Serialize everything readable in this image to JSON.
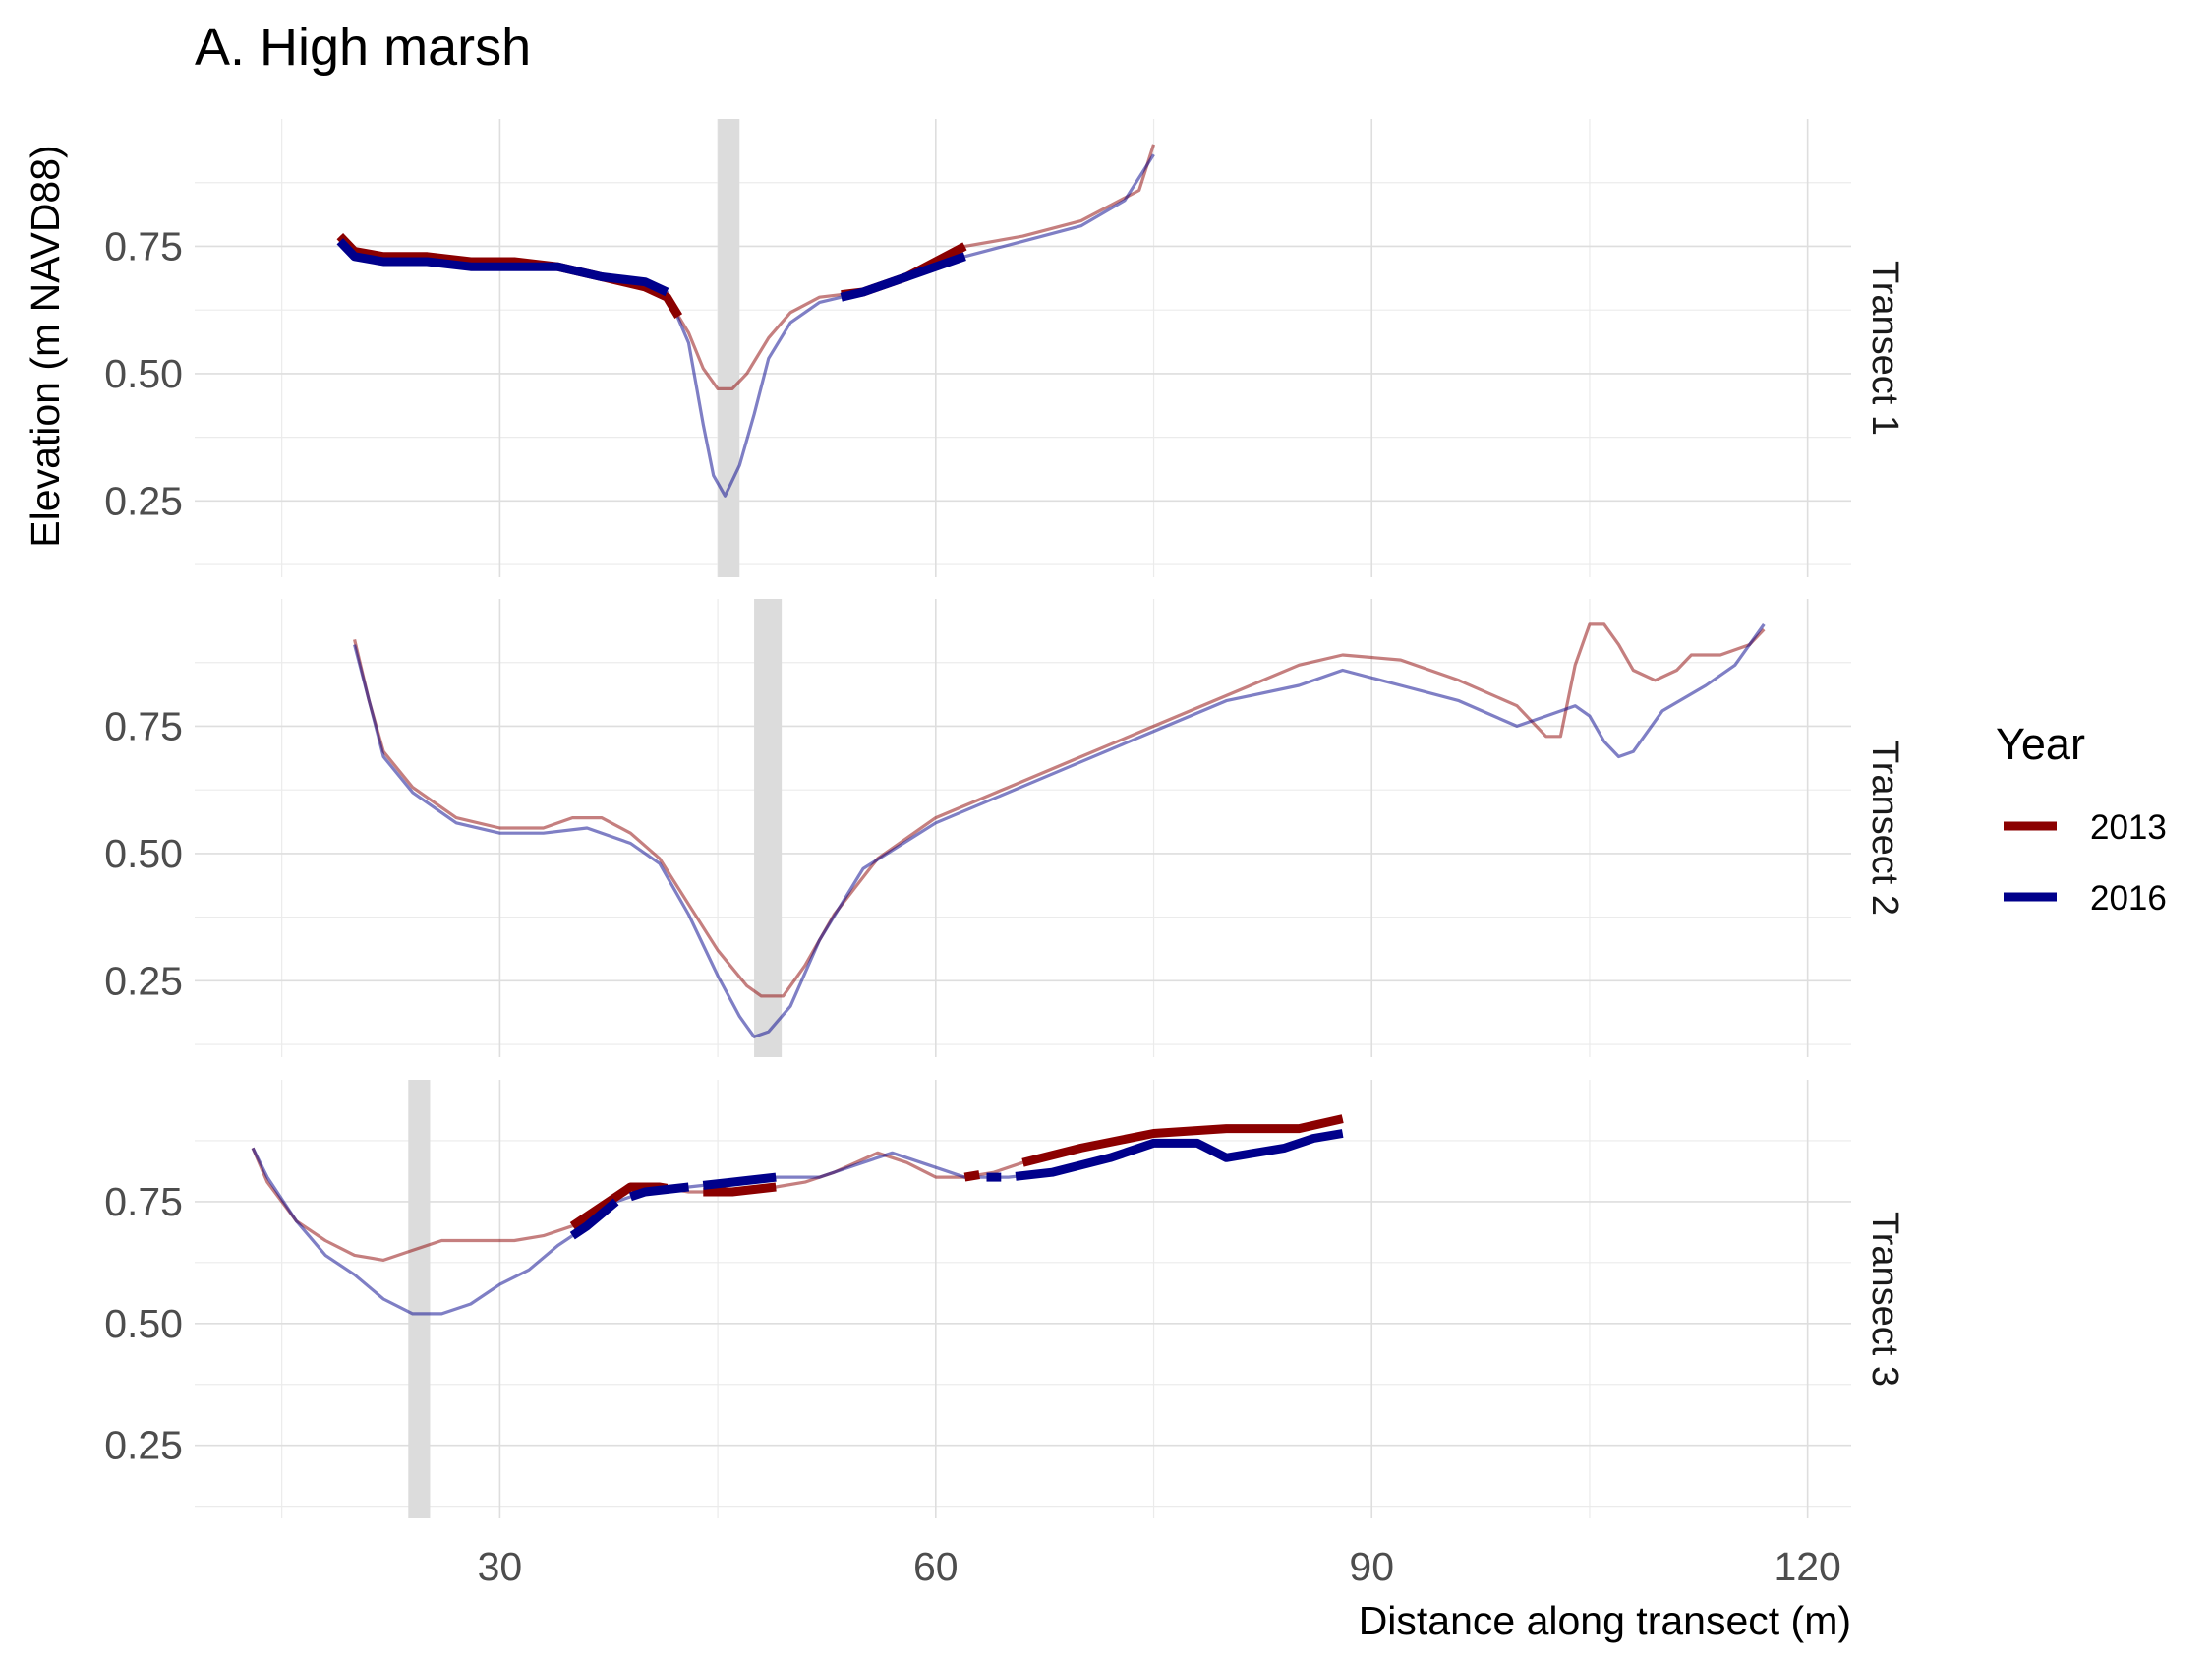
{
  "chart_data": {
    "type": "line",
    "title": "A. High marsh",
    "xlabel": "Distance along transect (m)",
    "ylabel": "Elevation (m NAVD88)",
    "xlim": [
      9,
      123
    ],
    "ylim": [
      0.1,
      1.0
    ],
    "x_ticks": [
      30,
      60,
      90,
      120
    ],
    "x_tick_labels": [
      "30",
      "60",
      "90",
      "120"
    ],
    "y_ticks": [
      0.25,
      0.5,
      0.75
    ],
    "y_tick_labels": [
      "0.25",
      "0.50",
      "0.75"
    ],
    "grid": true,
    "legend": {
      "title": "Year",
      "position": "right",
      "entries": [
        {
          "label": "2013",
          "color": "#8b0000"
        },
        {
          "label": "2016",
          "color": "#00008b"
        }
      ]
    },
    "colors": {
      "2013": "#8b0000",
      "2016": "#00008b",
      "band": "#dcdcdc"
    },
    "panels": [
      {
        "strip": "Transect 1",
        "band": [
          45,
          46.5
        ],
        "series": [
          {
            "name": "2013",
            "points": [
              [
                19,
                0.77
              ],
              [
                20,
                0.74
              ],
              [
                22,
                0.73
              ],
              [
                25,
                0.73
              ],
              [
                28,
                0.72
              ],
              [
                31,
                0.72
              ],
              [
                34,
                0.71
              ],
              [
                37,
                0.69
              ],
              [
                40,
                0.67
              ],
              [
                41.5,
                0.65
              ],
              [
                43,
                0.58
              ],
              [
                44,
                0.51
              ],
              [
                45,
                0.47
              ],
              [
                46,
                0.47
              ],
              [
                47,
                0.5
              ],
              [
                48.5,
                0.57
              ],
              [
                50,
                0.62
              ],
              [
                52,
                0.65
              ],
              [
                55,
                0.66
              ],
              [
                58,
                0.69
              ],
              [
                62,
                0.75
              ],
              [
                66,
                0.77
              ],
              [
                70,
                0.8
              ],
              [
                74,
                0.86
              ],
              [
                75,
                0.95
              ]
            ],
            "bold": [
              [
                19,
                42.3
              ],
              [
                53.5,
                62
              ]
            ]
          },
          {
            "name": "2016",
            "points": [
              [
                19,
                0.76
              ],
              [
                20,
                0.73
              ],
              [
                22,
                0.72
              ],
              [
                25,
                0.72
              ],
              [
                28,
                0.71
              ],
              [
                31,
                0.71
              ],
              [
                34,
                0.71
              ],
              [
                37,
                0.69
              ],
              [
                40,
                0.68
              ],
              [
                41.5,
                0.66
              ],
              [
                43,
                0.56
              ],
              [
                44,
                0.4
              ],
              [
                44.7,
                0.3
              ],
              [
                45.5,
                0.26
              ],
              [
                46.5,
                0.32
              ],
              [
                47.5,
                0.42
              ],
              [
                48.5,
                0.53
              ],
              [
                50,
                0.6
              ],
              [
                52,
                0.64
              ],
              [
                55,
                0.66
              ],
              [
                58,
                0.69
              ],
              [
                62,
                0.73
              ],
              [
                66,
                0.76
              ],
              [
                70,
                0.79
              ],
              [
                73,
                0.84
              ],
              [
                75,
                0.93
              ]
            ],
            "bold": [
              [
                19,
                41.5
              ],
              [
                53.5,
                62
              ]
            ]
          }
        ]
      },
      {
        "strip": "Transect 2",
        "band": [
          47.5,
          49.4
        ],
        "series": [
          {
            "name": "2013",
            "points": [
              [
                20,
                0.92
              ],
              [
                21,
                0.8
              ],
              [
                22,
                0.7
              ],
              [
                24,
                0.63
              ],
              [
                27,
                0.57
              ],
              [
                30,
                0.55
              ],
              [
                33,
                0.55
              ],
              [
                35,
                0.57
              ],
              [
                37,
                0.57
              ],
              [
                39,
                0.54
              ],
              [
                41,
                0.49
              ],
              [
                43,
                0.4
              ],
              [
                45,
                0.31
              ],
              [
                47,
                0.24
              ],
              [
                48,
                0.22
              ],
              [
                49.5,
                0.22
              ],
              [
                51,
                0.28
              ],
              [
                53,
                0.38
              ],
              [
                56,
                0.49
              ],
              [
                60,
                0.57
              ],
              [
                65,
                0.63
              ],
              [
                70,
                0.69
              ],
              [
                75,
                0.75
              ],
              [
                80,
                0.81
              ],
              [
                85,
                0.87
              ],
              [
                88,
                0.89
              ],
              [
                92,
                0.88
              ],
              [
                96,
                0.84
              ],
              [
                100,
                0.79
              ],
              [
                102,
                0.73
              ],
              [
                103,
                0.73
              ],
              [
                104,
                0.87
              ],
              [
                105,
                0.95
              ],
              [
                106,
                0.95
              ],
              [
                107,
                0.91
              ],
              [
                108,
                0.86
              ],
              [
                109.5,
                0.84
              ],
              [
                111,
                0.86
              ],
              [
                112,
                0.89
              ],
              [
                114,
                0.89
              ],
              [
                116,
                0.91
              ],
              [
                117,
                0.94
              ]
            ],
            "bold": []
          },
          {
            "name": "2016",
            "points": [
              [
                20,
                0.91
              ],
              [
                21,
                0.8
              ],
              [
                22,
                0.69
              ],
              [
                24,
                0.62
              ],
              [
                27,
                0.56
              ],
              [
                30,
                0.54
              ],
              [
                33,
                0.54
              ],
              [
                36,
                0.55
              ],
              [
                39,
                0.52
              ],
              [
                41,
                0.48
              ],
              [
                43,
                0.38
              ],
              [
                45,
                0.26
              ],
              [
                46.5,
                0.18
              ],
              [
                47.5,
                0.14
              ],
              [
                48.5,
                0.15
              ],
              [
                50,
                0.2
              ],
              [
                52,
                0.33
              ],
              [
                55,
                0.47
              ],
              [
                60,
                0.56
              ],
              [
                65,
                0.62
              ],
              [
                70,
                0.68
              ],
              [
                75,
                0.74
              ],
              [
                80,
                0.8
              ],
              [
                85,
                0.83
              ],
              [
                88,
                0.86
              ],
              [
                92,
                0.83
              ],
              [
                96,
                0.8
              ],
              [
                100,
                0.75
              ],
              [
                102,
                0.77
              ],
              [
                104,
                0.79
              ],
              [
                105,
                0.77
              ],
              [
                106,
                0.72
              ],
              [
                107,
                0.69
              ],
              [
                108,
                0.7
              ],
              [
                110,
                0.78
              ],
              [
                113,
                0.83
              ],
              [
                115,
                0.87
              ],
              [
                117,
                0.95
              ]
            ],
            "bold": []
          }
        ]
      },
      {
        "strip": "Transect 3",
        "band": [
          23.7,
          25.2
        ],
        "series": [
          {
            "name": "2013",
            "points": [
              [
                13,
                0.86
              ],
              [
                14,
                0.79
              ],
              [
                16,
                0.71
              ],
              [
                18,
                0.67
              ],
              [
                20,
                0.64
              ],
              [
                22,
                0.63
              ],
              [
                24,
                0.65
              ],
              [
                26,
                0.67
              ],
              [
                28,
                0.67
              ],
              [
                31,
                0.67
              ],
              [
                33,
                0.68
              ],
              [
                35,
                0.7
              ],
              [
                37,
                0.74
              ],
              [
                39,
                0.78
              ],
              [
                41,
                0.78
              ],
              [
                43,
                0.77
              ],
              [
                46,
                0.77
              ],
              [
                49,
                0.78
              ],
              [
                51,
                0.79
              ],
              [
                53,
                0.81
              ],
              [
                56,
                0.85
              ],
              [
                58,
                0.83
              ],
              [
                60,
                0.8
              ],
              [
                62,
                0.8
              ],
              [
                64,
                0.81
              ],
              [
                66,
                0.83
              ],
              [
                70,
                0.86
              ],
              [
                75,
                0.89
              ],
              [
                80,
                0.9
              ],
              [
                85,
                0.9
              ],
              [
                88,
                0.92
              ]
            ],
            "bold": [
              [
                35,
                41.5
              ],
              [
                44,
                49
              ],
              [
                62,
                63
              ],
              [
                66,
                88
              ]
            ]
          },
          {
            "name": "2016",
            "points": [
              [
                13,
                0.86
              ],
              [
                14,
                0.8
              ],
              [
                16,
                0.71
              ],
              [
                18,
                0.64
              ],
              [
                20,
                0.6
              ],
              [
                22,
                0.55
              ],
              [
                24,
                0.52
              ],
              [
                26,
                0.52
              ],
              [
                28,
                0.54
              ],
              [
                30,
                0.58
              ],
              [
                32,
                0.61
              ],
              [
                34,
                0.66
              ],
              [
                36,
                0.7
              ],
              [
                38,
                0.75
              ],
              [
                40,
                0.77
              ],
              [
                43,
                0.78
              ],
              [
                46,
                0.79
              ],
              [
                49,
                0.8
              ],
              [
                52,
                0.8
              ],
              [
                55,
                0.83
              ],
              [
                57,
                0.85
              ],
              [
                60,
                0.82
              ],
              [
                62,
                0.8
              ],
              [
                65,
                0.8
              ],
              [
                68,
                0.81
              ],
              [
                72,
                0.84
              ],
              [
                75,
                0.87
              ],
              [
                78,
                0.87
              ],
              [
                80,
                0.84
              ],
              [
                82,
                0.85
              ],
              [
                84,
                0.86
              ],
              [
                86,
                0.88
              ],
              [
                88,
                0.89
              ]
            ],
            "bold": [
              [
                35,
                38
              ],
              [
                39,
                43
              ],
              [
                44,
                49
              ],
              [
                63.5,
                64.5
              ],
              [
                65.5,
                88
              ]
            ]
          }
        ]
      }
    ]
  }
}
